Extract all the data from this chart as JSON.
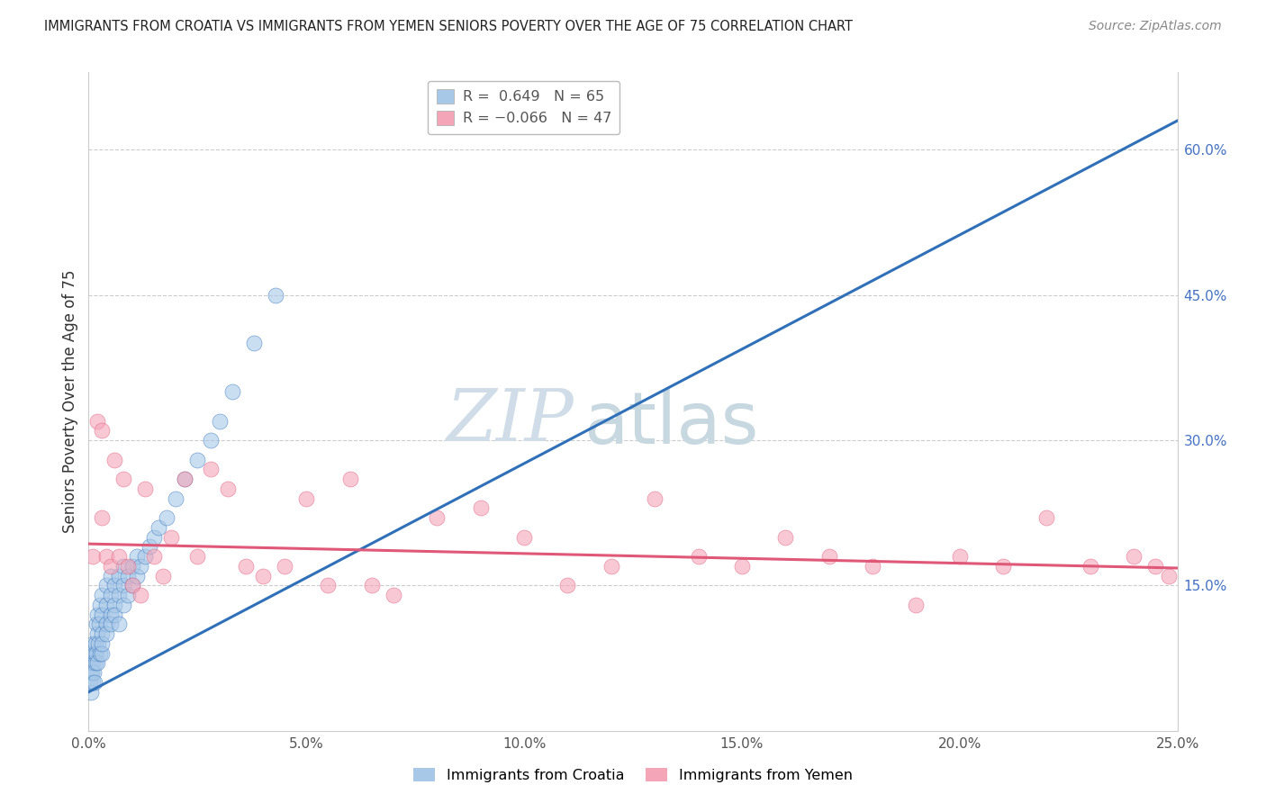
{
  "title": "IMMIGRANTS FROM CROATIA VS IMMIGRANTS FROM YEMEN SENIORS POVERTY OVER THE AGE OF 75 CORRELATION CHART",
  "source": "Source: ZipAtlas.com",
  "ylabel_left": "Seniors Poverty Over the Age of 75",
  "legend_bottom": [
    "Immigrants from Croatia",
    "Immigrants from Yemen"
  ],
  "r_croatia": 0.649,
  "n_croatia": 65,
  "r_yemen": -0.066,
  "n_yemen": 47,
  "xlim": [
    0.0,
    0.25
  ],
  "ylim": [
    0.0,
    0.68
  ],
  "right_yticks": [
    0.15,
    0.3,
    0.45,
    0.6
  ],
  "right_yticklabels": [
    "15.0%",
    "30.0%",
    "45.0%",
    "60.0%"
  ],
  "bottom_xticks": [
    0.0,
    0.05,
    0.1,
    0.15,
    0.2,
    0.25
  ],
  "bottom_xticklabels": [
    "0.0%",
    "5.0%",
    "10.0%",
    "15.0%",
    "20.0%",
    "25.0%"
  ],
  "color_croatia": "#a8c8e8",
  "color_yemen": "#f4a5b8",
  "color_line_croatia": "#3070b8",
  "color_line_yemen": "#e05878",
  "watermark_zip": "ZIP",
  "watermark_atlas": "atlas",
  "watermark_color_zip": "#d0dde8",
  "watermark_color_atlas": "#c8d8e0",
  "croatia_x": [
    0.0003,
    0.0004,
    0.0005,
    0.0006,
    0.0007,
    0.0008,
    0.0009,
    0.001,
    0.001,
    0.0012,
    0.0013,
    0.0014,
    0.0015,
    0.0016,
    0.0017,
    0.0018,
    0.002,
    0.002,
    0.002,
    0.0022,
    0.0023,
    0.0025,
    0.0025,
    0.003,
    0.003,
    0.003,
    0.003,
    0.003,
    0.004,
    0.004,
    0.004,
    0.004,
    0.005,
    0.005,
    0.005,
    0.005,
    0.006,
    0.006,
    0.006,
    0.007,
    0.007,
    0.007,
    0.008,
    0.008,
    0.008,
    0.009,
    0.009,
    0.01,
    0.01,
    0.011,
    0.011,
    0.012,
    0.013,
    0.014,
    0.015,
    0.016,
    0.018,
    0.02,
    0.022,
    0.025,
    0.028,
    0.03,
    0.033,
    0.038,
    0.043
  ],
  "croatia_y": [
    0.05,
    0.06,
    0.07,
    0.04,
    0.08,
    0.06,
    0.05,
    0.07,
    0.09,
    0.06,
    0.08,
    0.05,
    0.07,
    0.09,
    0.11,
    0.08,
    0.1,
    0.07,
    0.12,
    0.09,
    0.11,
    0.08,
    0.13,
    0.1,
    0.08,
    0.12,
    0.14,
    0.09,
    0.11,
    0.13,
    0.15,
    0.1,
    0.12,
    0.14,
    0.16,
    0.11,
    0.13,
    0.15,
    0.12,
    0.14,
    0.16,
    0.11,
    0.13,
    0.15,
    0.17,
    0.14,
    0.16,
    0.15,
    0.17,
    0.16,
    0.18,
    0.17,
    0.18,
    0.19,
    0.2,
    0.21,
    0.22,
    0.24,
    0.26,
    0.28,
    0.3,
    0.32,
    0.35,
    0.4,
    0.45
  ],
  "yemen_x": [
    0.001,
    0.002,
    0.003,
    0.003,
    0.004,
    0.005,
    0.006,
    0.007,
    0.008,
    0.009,
    0.01,
    0.012,
    0.013,
    0.015,
    0.017,
    0.019,
    0.022,
    0.025,
    0.028,
    0.032,
    0.036,
    0.04,
    0.045,
    0.05,
    0.055,
    0.06,
    0.065,
    0.07,
    0.08,
    0.09,
    0.1,
    0.11,
    0.12,
    0.13,
    0.14,
    0.15,
    0.16,
    0.17,
    0.18,
    0.19,
    0.2,
    0.21,
    0.22,
    0.23,
    0.24,
    0.245,
    0.248
  ],
  "yemen_y": [
    0.18,
    0.32,
    0.31,
    0.22,
    0.18,
    0.17,
    0.28,
    0.18,
    0.26,
    0.17,
    0.15,
    0.14,
    0.25,
    0.18,
    0.16,
    0.2,
    0.26,
    0.18,
    0.27,
    0.25,
    0.17,
    0.16,
    0.17,
    0.24,
    0.15,
    0.26,
    0.15,
    0.14,
    0.22,
    0.23,
    0.2,
    0.15,
    0.17,
    0.24,
    0.18,
    0.17,
    0.2,
    0.18,
    0.17,
    0.13,
    0.18,
    0.17,
    0.22,
    0.17,
    0.18,
    0.17,
    0.16
  ]
}
